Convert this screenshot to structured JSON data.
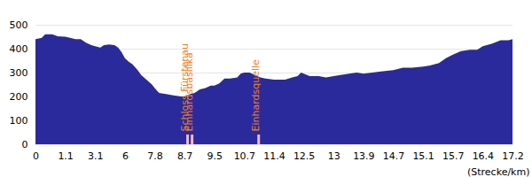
{
  "chart_data": {
    "type": "area",
    "x_label": "(Strecke/km)",
    "color": "#2a2a9c",
    "grid": true,
    "x": [
      0,
      0.23,
      0.36,
      0.62,
      0.82,
      1.1,
      1.42,
      1.78,
      2.14,
      2.49,
      2.85,
      3.1,
      3.61,
      3.95,
      4.47,
      4.99,
      5.34,
      5.68,
      6.0,
      6.23,
      6.45,
      6.77,
      6.98,
      7.3,
      7.63,
      7.8,
      7.93,
      8.14,
      8.36,
      8.6,
      8.7,
      8.85,
      8.97,
      9.11,
      9.26,
      9.4,
      9.5,
      9.7,
      9.91,
      10.13,
      10.42,
      10.56,
      10.7,
      10.83,
      10.95,
      11.08,
      11.2,
      11.4,
      11.61,
      11.81,
      12.07,
      12.27,
      12.4,
      12.5,
      12.6,
      12.75,
      12.87,
      13.0,
      13.2,
      13.47,
      13.7,
      13.9,
      14.14,
      14.37,
      14.7,
      14.83,
      14.95,
      15.1,
      15.24,
      15.42,
      15.56,
      15.7,
      15.89,
      16.1,
      16.27,
      16.4,
      16.64,
      16.88,
      17.09,
      17.2
    ],
    "values": [
      440,
      445,
      460,
      460,
      452,
      450,
      445,
      440,
      440,
      425,
      415,
      410,
      405,
      415,
      418,
      415,
      405,
      385,
      360,
      345,
      335,
      310,
      290,
      270,
      250,
      235,
      215,
      210,
      205,
      200,
      200,
      210,
      215,
      230,
      235,
      245,
      245,
      255,
      275,
      275,
      280,
      295,
      300,
      300,
      290,
      280,
      275,
      270,
      270,
      270,
      280,
      285,
      300,
      295,
      285,
      285,
      280,
      285,
      290,
      295,
      300,
      295,
      300,
      305,
      310,
      320,
      320,
      325,
      330,
      340,
      360,
      375,
      390,
      395,
      395,
      410,
      420,
      435,
      435,
      440
    ],
    "xlim": [
      0,
      17.2
    ],
    "xticks": [
      0,
      1.1,
      3.1,
      6,
      7.8,
      8.7,
      9.5,
      10.7,
      11.4,
      12.5,
      13,
      13.9,
      14.7,
      15.1,
      15.7,
      16.4,
      17.2
    ],
    "ylim": [
      0,
      500
    ],
    "yticks": [
      0,
      100,
      200,
      300,
      400,
      500
    ],
    "annotations": [
      {
        "text": "Schloss Fürstenau",
        "x": 8.77
      },
      {
        "text": "Einhardsbasilika",
        "x": 8.89
      },
      {
        "text": "Einhardsquelle",
        "x": 11.03
      }
    ]
  }
}
